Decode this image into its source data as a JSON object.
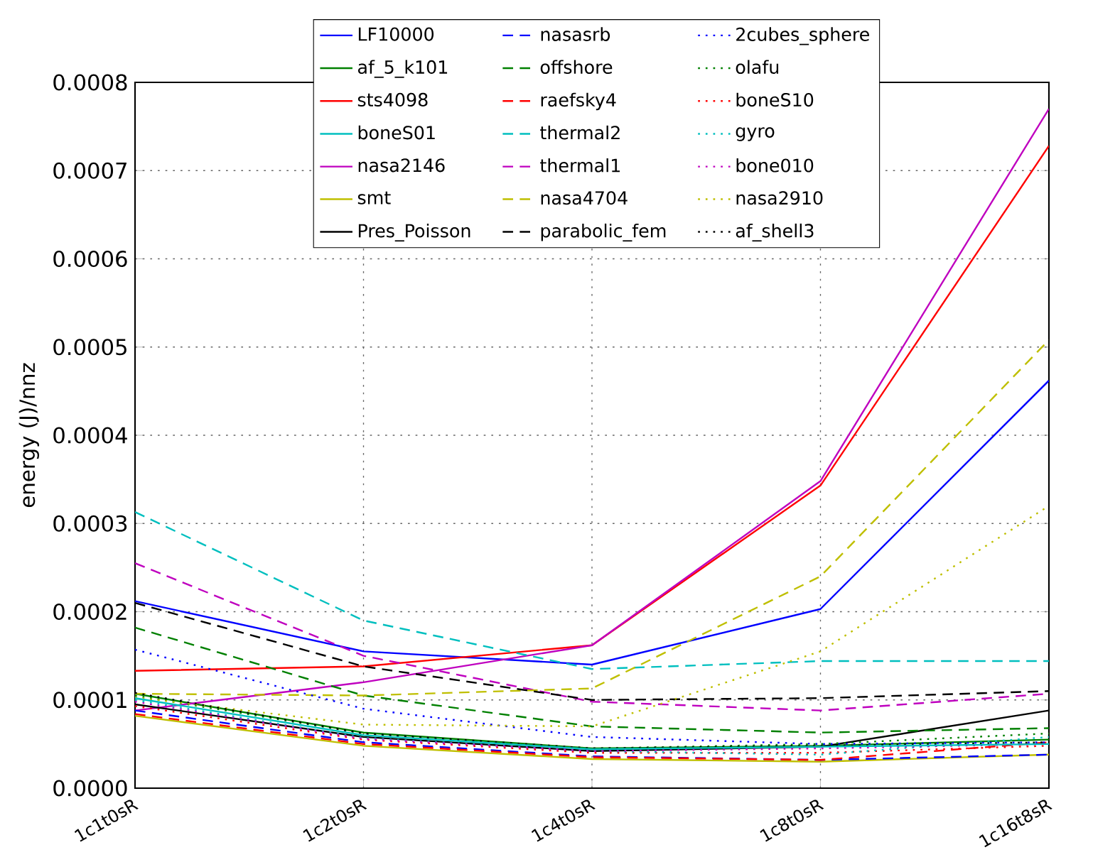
{
  "chart_data": {
    "type": "line",
    "ylabel": "energy (J)/nnz",
    "categories": [
      "1c1t0sR",
      "1c2t0sR",
      "1c4t0sR",
      "1c8t0sR",
      "1c16t8sR"
    ],
    "ylim": [
      0,
      0.0008
    ],
    "yticks": [
      {
        "value": 0,
        "label": "0.0000"
      },
      {
        "value": 0.0001,
        "label": "0.0001"
      },
      {
        "value": 0.0002,
        "label": "0.0002"
      },
      {
        "value": 0.0003,
        "label": "0.0003"
      },
      {
        "value": 0.0004,
        "label": "0.0004"
      },
      {
        "value": 0.0005,
        "label": "0.0005"
      },
      {
        "value": 0.0006,
        "label": "0.0006"
      },
      {
        "value": 0.0007,
        "label": "0.0007"
      },
      {
        "value": 0.0008,
        "label": "0.0008"
      }
    ],
    "grid": true,
    "legend": "top",
    "series": [
      {
        "name": "LF10000",
        "color": "#0000ff",
        "line_style": "solid",
        "values": [
          0.000212,
          0.000155,
          0.00014,
          0.000203,
          0.000462
        ]
      },
      {
        "name": "af_5_k101",
        "color": "#008000",
        "line_style": "solid",
        "values": [
          0.000107,
          6.3e-05,
          4.5e-05,
          4.8e-05,
          5.5e-05
        ]
      },
      {
        "name": "sts4098",
        "color": "#ff0000",
        "line_style": "solid",
        "values": [
          0.000133,
          0.000138,
          0.000162,
          0.000343,
          0.000728
        ]
      },
      {
        "name": "boneS01",
        "color": "#00bfbf",
        "line_style": "solid",
        "values": [
          0.000102,
          6e-05,
          4.4e-05,
          4.7e-05,
          5e-05
        ]
      },
      {
        "name": "nasa2146",
        "color": "#bf00bf",
        "line_style": "solid",
        "values": [
          8.8e-05,
          0.00012,
          0.000162,
          0.000348,
          0.00077
        ]
      },
      {
        "name": "smt",
        "color": "#bfbf00",
        "line_style": "solid",
        "values": [
          8.2e-05,
          4.8e-05,
          3.3e-05,
          3e-05,
          3.8e-05
        ]
      },
      {
        "name": "Pres_Poisson",
        "color": "#000000",
        "line_style": "solid",
        "values": [
          9.5e-05,
          5.8e-05,
          4.2e-05,
          4.7e-05,
          8.8e-05
        ]
      },
      {
        "name": "nasasrb",
        "color": "#0000ff",
        "line_style": "dashed",
        "values": [
          8.8e-05,
          5.2e-05,
          3.6e-05,
          3.2e-05,
          3.8e-05
        ]
      },
      {
        "name": "offshore",
        "color": "#008000",
        "line_style": "dashed",
        "values": [
          0.000182,
          0.000105,
          7e-05,
          6.3e-05,
          6.8e-05
        ]
      },
      {
        "name": "raefsky4",
        "color": "#ff0000",
        "line_style": "dashed",
        "values": [
          8.4e-05,
          5e-05,
          3.5e-05,
          3.2e-05,
          5.2e-05
        ]
      },
      {
        "name": "thermal2",
        "color": "#00bfbf",
        "line_style": "dashed",
        "values": [
          0.000313,
          0.00019,
          0.000135,
          0.000144,
          0.000144
        ]
      },
      {
        "name": "thermal1",
        "color": "#bf00bf",
        "line_style": "dashed",
        "values": [
          0.000255,
          0.00015,
          9.8e-05,
          8.8e-05,
          0.000107
        ]
      },
      {
        "name": "nasa4704",
        "color": "#bfbf00",
        "line_style": "dashed",
        "values": [
          0.000107,
          0.000105,
          0.000113,
          0.00024,
          0.000508
        ]
      },
      {
        "name": "parabolic_fem",
        "color": "#000000",
        "line_style": "dashed",
        "values": [
          0.00021,
          0.000138,
          0.0001,
          0.000102,
          0.00011
        ]
      },
      {
        "name": "2cubes_sphere",
        "color": "#0000ff",
        "line_style": "dotted",
        "values": [
          0.000157,
          9e-05,
          5.8e-05,
          5e-05,
          5.2e-05
        ]
      },
      {
        "name": "olafu",
        "color": "#008000",
        "line_style": "dotted",
        "values": [
          0.000105,
          6.2e-05,
          4.5e-05,
          5e-05,
          6.2e-05
        ]
      },
      {
        "name": "boneS10",
        "color": "#ff0000",
        "line_style": "dotted",
        "values": [
          9.3e-05,
          5.5e-05,
          4e-05,
          4e-05,
          4.8e-05
        ]
      },
      {
        "name": "gyro",
        "color": "#00bfbf",
        "line_style": "dotted",
        "values": [
          0.0001,
          5.7e-05,
          4.2e-05,
          3.8e-05,
          5.8e-05
        ]
      },
      {
        "name": "bone010",
        "color": "#bf00bf",
        "line_style": "dotted",
        "values": [
          9.8e-05,
          5.6e-05,
          4.2e-05,
          4.5e-05,
          5e-05
        ]
      },
      {
        "name": "nasa2910",
        "color": "#bfbf00",
        "line_style": "dotted",
        "values": [
          0.000103,
          7.2e-05,
          7e-05,
          0.000155,
          0.00032
        ]
      },
      {
        "name": "af_shell3",
        "color": "#000000",
        "line_style": "dotted",
        "values": [
          0.000108,
          6.2e-05,
          4.5e-05,
          4.8e-05,
          5.2e-05
        ]
      }
    ]
  }
}
